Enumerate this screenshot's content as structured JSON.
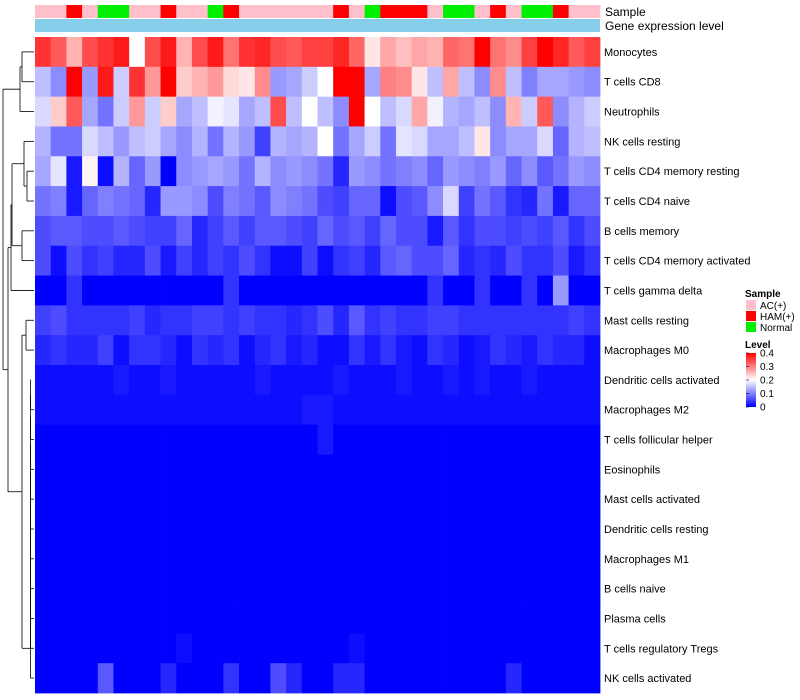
{
  "chart_data": {
    "type": "heatmap",
    "title": "",
    "annotation_tracks": [
      {
        "name": "Sample"
      },
      {
        "name": "Gene expression level"
      }
    ],
    "sample_groups": [
      "AC(+)",
      "AC(+)",
      "HAM(+)",
      "AC(+)",
      "Normal",
      "Normal",
      "AC(+)",
      "AC(+)",
      "HAM(+)",
      "AC(+)",
      "AC(+)",
      "Normal",
      "HAM(+)",
      "AC(+)",
      "AC(+)",
      "AC(+)",
      "AC(+)",
      "AC(+)",
      "AC(+)",
      "HAM(+)",
      "AC(+)",
      "Normal",
      "HAM(+)",
      "HAM(+)",
      "HAM(+)",
      "AC(+)",
      "Normal",
      "Normal",
      "AC(+)",
      "HAM(+)",
      "AC(+)",
      "Normal",
      "Normal",
      "HAM(+)",
      "AC(+)",
      "AC(+)"
    ],
    "rows": [
      "Monocytes",
      "T cells CD8",
      "Neutrophils",
      "NK cells resting",
      "T cells CD4 memory resting",
      "T cells CD4 naive",
      "B cells memory",
      "T cells CD4 memory activated",
      "T cells gamma delta",
      "Mast cells resting",
      "Macrophages M0",
      "Dendritic cells activated",
      "Macrophages M2",
      "T cells follicular helper",
      "Eosinophils",
      "Mast cells activated",
      "Dendritic cells resting",
      "Macrophages M1",
      "B cells naive",
      "Plasma cells",
      "T cells regulatory  Tregs",
      "NK cells activated"
    ],
    "values": [
      [
        0.36,
        0.33,
        0.26,
        0.34,
        0.36,
        0.38,
        0.2,
        0.34,
        0.38,
        0.26,
        0.34,
        0.38,
        0.31,
        0.36,
        0.37,
        0.34,
        0.33,
        0.35,
        0.35,
        0.37,
        0.32,
        0.22,
        0.27,
        0.25,
        0.27,
        0.26,
        0.32,
        0.31,
        0.4,
        0.31,
        0.29,
        0.35,
        0.4,
        0.37,
        0.33,
        0.35
      ],
      [
        0.15,
        0.11,
        0.4,
        0.12,
        0.38,
        0.16,
        0.36,
        0.28,
        0.4,
        0.24,
        0.26,
        0.28,
        0.23,
        0.22,
        0.29,
        0.12,
        0.13,
        0.16,
        0.2,
        0.4,
        0.4,
        0.13,
        0.3,
        0.29,
        0.22,
        0.15,
        0.27,
        0.15,
        0.11,
        0.29,
        0.15,
        0.1,
        0.13,
        0.13,
        0.12,
        0.11
      ],
      [
        0.17,
        0.24,
        0.33,
        0.13,
        0.09,
        0.16,
        0.28,
        0.16,
        0.24,
        0.13,
        0.15,
        0.19,
        0.18,
        0.13,
        0.15,
        0.34,
        0.15,
        0.2,
        0.15,
        0.11,
        0.4,
        0.2,
        0.15,
        0.17,
        0.27,
        0.19,
        0.14,
        0.13,
        0.15,
        0.11,
        0.26,
        0.16,
        0.33,
        0.11,
        0.14,
        0.16
      ],
      [
        0.14,
        0.09,
        0.09,
        0.17,
        0.15,
        0.12,
        0.15,
        0.16,
        0.13,
        0.11,
        0.14,
        0.09,
        0.14,
        0.12,
        0.05,
        0.14,
        0.13,
        0.14,
        0.2,
        0.09,
        0.13,
        0.16,
        0.09,
        0.18,
        0.17,
        0.13,
        0.13,
        0.15,
        0.22,
        0.11,
        0.13,
        0.13,
        0.17,
        0.08,
        0.14,
        0.15
      ],
      [
        0.13,
        0.18,
        0.02,
        0.21,
        0.01,
        0.14,
        0.08,
        0.12,
        0.0,
        0.11,
        0.12,
        0.13,
        0.12,
        0.09,
        0.14,
        0.11,
        0.12,
        0.11,
        0.09,
        0.03,
        0.12,
        0.11,
        0.09,
        0.1,
        0.11,
        0.08,
        0.12,
        0.11,
        0.1,
        0.12,
        0.08,
        0.11,
        0.07,
        0.09,
        0.12,
        0.11
      ],
      [
        0.09,
        0.1,
        0.02,
        0.08,
        0.1,
        0.09,
        0.08,
        0.03,
        0.12,
        0.12,
        0.11,
        0.06,
        0.1,
        0.09,
        0.07,
        0.11,
        0.1,
        0.09,
        0.06,
        0.05,
        0.08,
        0.08,
        0.01,
        0.06,
        0.07,
        0.11,
        0.17,
        0.05,
        0.09,
        0.07,
        0.04,
        0.03,
        0.09,
        0.02,
        0.08,
        0.08
      ],
      [
        0.06,
        0.07,
        0.07,
        0.06,
        0.06,
        0.07,
        0.06,
        0.05,
        0.05,
        0.08,
        0.03,
        0.05,
        0.07,
        0.05,
        0.07,
        0.07,
        0.06,
        0.05,
        0.08,
        0.06,
        0.07,
        0.05,
        0.08,
        0.06,
        0.06,
        0.02,
        0.07,
        0.04,
        0.06,
        0.06,
        0.05,
        0.06,
        0.05,
        0.07,
        0.04,
        0.06
      ],
      [
        0.06,
        0.01,
        0.06,
        0.04,
        0.05,
        0.03,
        0.03,
        0.06,
        0.02,
        0.05,
        0.03,
        0.05,
        0.04,
        0.06,
        0.04,
        0.01,
        0.01,
        0.05,
        0.01,
        0.04,
        0.05,
        0.03,
        0.07,
        0.08,
        0.06,
        0.06,
        0.08,
        0.03,
        0.04,
        0.03,
        0.06,
        0.04,
        0.04,
        0.06,
        0.02,
        0.04
      ],
      [
        0.0,
        0.0,
        0.04,
        0.0,
        0.0,
        0.0,
        0.0,
        0.0,
        0.0,
        0.0,
        0.0,
        0.0,
        0.04,
        0.0,
        0.0,
        0.0,
        0.0,
        0.0,
        0.0,
        0.0,
        0.0,
        0.0,
        0.0,
        0.0,
        0.0,
        0.04,
        0.0,
        0.0,
        0.04,
        0.0,
        0.0,
        0.04,
        0.0,
        0.12,
        0.0,
        0.0
      ],
      [
        0.05,
        0.06,
        0.04,
        0.04,
        0.04,
        0.04,
        0.05,
        0.03,
        0.04,
        0.04,
        0.05,
        0.05,
        0.04,
        0.05,
        0.04,
        0.04,
        0.03,
        0.04,
        0.06,
        0.03,
        0.07,
        0.04,
        0.05,
        0.04,
        0.04,
        0.05,
        0.05,
        0.04,
        0.04,
        0.04,
        0.04,
        0.04,
        0.04,
        0.04,
        0.05,
        0.04
      ],
      [
        0.03,
        0.04,
        0.03,
        0.03,
        0.05,
        0.01,
        0.04,
        0.04,
        0.03,
        0.01,
        0.04,
        0.03,
        0.04,
        0.01,
        0.03,
        0.04,
        0.02,
        0.03,
        0.01,
        0.01,
        0.04,
        0.02,
        0.04,
        0.02,
        0.01,
        0.04,
        0.03,
        0.01,
        0.02,
        0.04,
        0.03,
        0.02,
        0.04,
        0.03,
        0.03,
        0.01
      ],
      [
        0.01,
        0.01,
        0.01,
        0.01,
        0.01,
        0.02,
        0.01,
        0.01,
        0.02,
        0.01,
        0.01,
        0.01,
        0.01,
        0.01,
        0.02,
        0.01,
        0.01,
        0.01,
        0.01,
        0.02,
        0.01,
        0.01,
        0.01,
        0.02,
        0.01,
        0.01,
        0.02,
        0.01,
        0.02,
        0.01,
        0.01,
        0.02,
        0.01,
        0.01,
        0.01,
        0.01
      ],
      [
        0.01,
        0.01,
        0.01,
        0.01,
        0.01,
        0.01,
        0.01,
        0.01,
        0.01,
        0.01,
        0.01,
        0.01,
        0.01,
        0.01,
        0.01,
        0.01,
        0.01,
        0.02,
        0.02,
        0.01,
        0.01,
        0.01,
        0.01,
        0.01,
        0.01,
        0.01,
        0.01,
        0.01,
        0.01,
        0.01,
        0.01,
        0.01,
        0.01,
        0.01,
        0.01,
        0.01
      ],
      [
        0.0,
        0.0,
        0.0,
        0.0,
        0.0,
        0.0,
        0.0,
        0.0,
        0.0,
        0.0,
        0.0,
        0.0,
        0.0,
        0.0,
        0.0,
        0.0,
        0.0,
        0.0,
        0.02,
        0.0,
        0.0,
        0.0,
        0.0,
        0.0,
        0.0,
        0.0,
        0.0,
        0.0,
        0.0,
        0.0,
        0.0,
        0.0,
        0.0,
        0.0,
        0.0,
        0.0
      ],
      [
        0.0,
        0.0,
        0.0,
        0.0,
        0.0,
        0.0,
        0.0,
        0.0,
        0.0,
        0.0,
        0.0,
        0.0,
        0.0,
        0.0,
        0.0,
        0.0,
        0.0,
        0.0,
        0.0,
        0.0,
        0.0,
        0.0,
        0.0,
        0.0,
        0.0,
        0.0,
        0.0,
        0.0,
        0.0,
        0.0,
        0.0,
        0.0,
        0.0,
        0.0,
        0.0,
        0.0
      ],
      [
        0.0,
        0.0,
        0.0,
        0.0,
        0.0,
        0.0,
        0.0,
        0.0,
        0.0,
        0.0,
        0.0,
        0.0,
        0.0,
        0.0,
        0.0,
        0.0,
        0.0,
        0.0,
        0.0,
        0.0,
        0.0,
        0.0,
        0.0,
        0.0,
        0.0,
        0.0,
        0.0,
        0.0,
        0.0,
        0.0,
        0.0,
        0.0,
        0.0,
        0.0,
        0.0,
        0.0
      ],
      [
        0.0,
        0.0,
        0.0,
        0.0,
        0.0,
        0.0,
        0.0,
        0.0,
        0.0,
        0.0,
        0.0,
        0.0,
        0.0,
        0.0,
        0.0,
        0.0,
        0.0,
        0.0,
        0.0,
        0.0,
        0.0,
        0.0,
        0.0,
        0.0,
        0.0,
        0.0,
        0.0,
        0.0,
        0.0,
        0.0,
        0.0,
        0.0,
        0.0,
        0.0,
        0.0,
        0.0
      ],
      [
        0.0,
        0.0,
        0.0,
        0.0,
        0.0,
        0.0,
        0.0,
        0.0,
        0.0,
        0.0,
        0.0,
        0.0,
        0.0,
        0.0,
        0.0,
        0.0,
        0.0,
        0.0,
        0.0,
        0.0,
        0.0,
        0.0,
        0.0,
        0.0,
        0.0,
        0.0,
        0.0,
        0.0,
        0.0,
        0.0,
        0.0,
        0.0,
        0.0,
        0.0,
        0.0,
        0.0
      ],
      [
        0.0,
        0.0,
        0.0,
        0.0,
        0.0,
        0.0,
        0.0,
        0.0,
        0.0,
        0.0,
        0.0,
        0.0,
        0.0,
        0.0,
        0.0,
        0.0,
        0.0,
        0.0,
        0.0,
        0.0,
        0.0,
        0.0,
        0.0,
        0.0,
        0.0,
        0.0,
        0.0,
        0.0,
        0.0,
        0.0,
        0.0,
        0.0,
        0.0,
        0.0,
        0.0,
        0.0
      ],
      [
        0.0,
        0.0,
        0.0,
        0.0,
        0.0,
        0.0,
        0.0,
        0.0,
        0.0,
        0.0,
        0.0,
        0.0,
        0.0,
        0.0,
        0.0,
        0.0,
        0.0,
        0.0,
        0.0,
        0.0,
        0.0,
        0.0,
        0.0,
        0.0,
        0.0,
        0.0,
        0.0,
        0.0,
        0.0,
        0.0,
        0.0,
        0.0,
        0.0,
        0.0,
        0.0,
        0.0
      ],
      [
        0.0,
        0.0,
        0.0,
        0.0,
        0.0,
        0.0,
        0.0,
        0.0,
        0.0,
        0.01,
        0.0,
        0.0,
        0.0,
        0.0,
        0.0,
        0.0,
        0.0,
        0.0,
        0.0,
        0.0,
        0.01,
        0.0,
        0.0,
        0.0,
        0.0,
        0.0,
        0.0,
        0.0,
        0.0,
        0.0,
        0.0,
        0.0,
        0.0,
        0.0,
        0.0,
        0.0
      ],
      [
        0.0,
        0.0,
        0.0,
        0.0,
        0.07,
        0.0,
        0.0,
        0.0,
        0.03,
        0.0,
        0.0,
        0.0,
        0.04,
        0.0,
        0.0,
        0.06,
        0.03,
        0.0,
        0.0,
        0.03,
        0.03,
        0.0,
        0.0,
        0.0,
        0.0,
        0.0,
        0.0,
        0.0,
        0.0,
        0.0,
        0.03,
        0.0,
        0.0,
        0.0,
        0.0,
        0.0
      ]
    ],
    "legend_sample": {
      "title": "Sample",
      "entries": [
        {
          "label": "AC(+)",
          "color": "#ffc0cb"
        },
        {
          "label": "HAM(+)",
          "color": "#ff0000"
        },
        {
          "label": "Normal",
          "color": "#00ee00"
        }
      ]
    },
    "legend_level": {
      "title": "Level",
      "ticks": [
        "0.4",
        "0.3",
        "0.2",
        "0.1",
        "0"
      ],
      "range": [
        0,
        0.4
      ],
      "colors": {
        "low": "#0000ff",
        "mid": "#ffffff",
        "high": "#ff0000"
      }
    },
    "gene_expression_color": "#87ceeb"
  }
}
